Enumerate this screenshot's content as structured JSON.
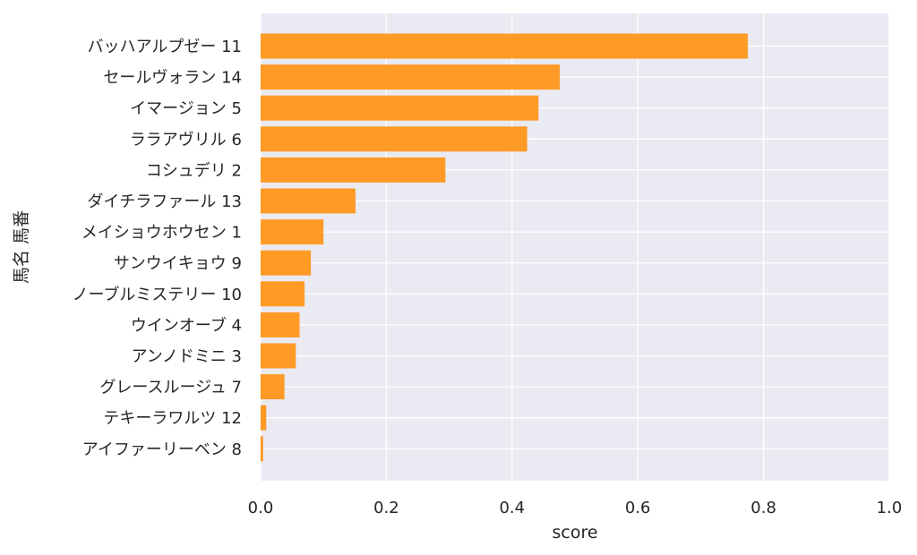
{
  "chart_data": {
    "type": "bar",
    "orientation": "horizontal",
    "title": "",
    "xlabel": "score",
    "ylabel": "馬名 馬番",
    "xlim": [
      0.0,
      1.0
    ],
    "xticks": [
      "0.0",
      "0.2",
      "0.4",
      "0.6",
      "0.8",
      "1.0"
    ],
    "grid": true,
    "categories": [
      "バッハアルプゼー 11",
      "セールヴォラン 14",
      "イマージョン 5",
      "ララアヴリル 6",
      "コシュデリ 2",
      "ダイチラファール 13",
      "メイショウホウセン 1",
      "サンウイキョウ 9",
      "ノーブルミステリー 10",
      "ウインオーブ 4",
      "アンノドミニ 3",
      "グレースルージュ 7",
      "テキーラワルツ 12",
      "アイファーリーベン 8"
    ],
    "values": [
      0.775,
      0.476,
      0.442,
      0.424,
      0.294,
      0.151,
      0.1,
      0.08,
      0.07,
      0.062,
      0.056,
      0.038,
      0.009,
      0.004
    ],
    "colors": {
      "bar": "#ff9313",
      "background": "#eaeaf2",
      "grid": "#ffffff",
      "text": "#262626"
    }
  }
}
